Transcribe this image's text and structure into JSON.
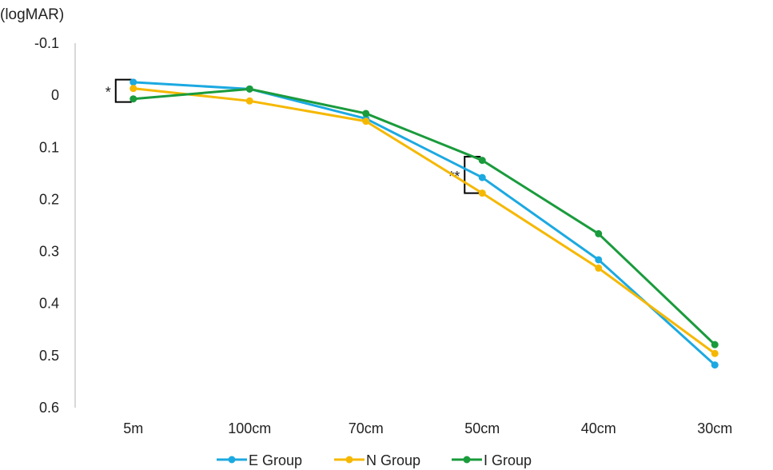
{
  "chart_data": {
    "type": "line",
    "title": "",
    "ylabel": "(logMAR)",
    "xlabel": "",
    "categories": [
      "5m",
      "100cm",
      "70cm",
      "50cm",
      "40cm",
      "30cm"
    ],
    "y_ticks": [
      "-0.1",
      "0",
      "0.1",
      "0.2",
      "0.3",
      "0.4",
      "0.5",
      "0.6"
    ],
    "ylim": [
      -0.1,
      0.6
    ],
    "y_inverted": true,
    "grid": false,
    "legend_position": "bottom",
    "series": [
      {
        "name": "E Group",
        "color": "#1ca9e1",
        "values": [
          -0.025,
          -0.012,
          0.045,
          0.158,
          0.316,
          0.518
        ]
      },
      {
        "name": "N Group",
        "color": "#f5b800",
        "values": [
          -0.013,
          0.011,
          0.05,
          0.188,
          0.332,
          0.496
        ]
      },
      {
        "name": "I Group",
        "color": "#1a9b3c",
        "values": [
          0.007,
          -0.012,
          0.035,
          0.125,
          0.266,
          0.479
        ]
      }
    ],
    "annotations": [
      {
        "text": "*",
        "category": "5m",
        "y_top": -0.03,
        "y_bottom": 0.013
      },
      {
        "text": "**",
        "category": "50cm",
        "y_top": 0.118,
        "y_bottom": 0.188
      }
    ]
  }
}
